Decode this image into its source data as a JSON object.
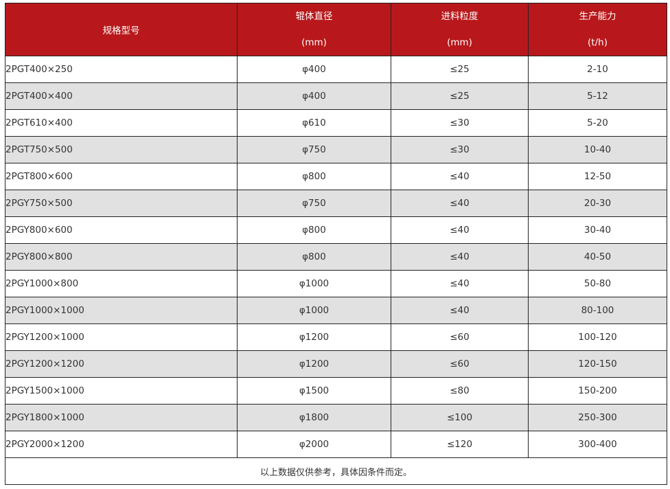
{
  "header_color": "#b8181b",
  "columns": [
    {
      "title": "规格型号",
      "unit": ""
    },
    {
      "title": "辊体直径",
      "unit": "(mm)"
    },
    {
      "title": "进料粒度",
      "unit": "(mm)"
    },
    {
      "title": "生产能力",
      "unit": "(t/h)"
    }
  ],
  "rows": [
    [
      "2PGT400×250",
      "φ400",
      "≤25",
      "2-10"
    ],
    [
      "2PGT400×400",
      "φ400",
      "≤25",
      "5-12"
    ],
    [
      "2PGT610×400",
      "φ610",
      "≤30",
      "5-20"
    ],
    [
      "2PGT750×500",
      "φ750",
      "≤30",
      "10-40"
    ],
    [
      "2PGT800×600",
      "φ800",
      "≤40",
      "12-50"
    ],
    [
      "2PGY750×500",
      "φ750",
      "≤40",
      "20-30"
    ],
    [
      "2PGY800×600",
      "φ800",
      "≤40",
      "30-40"
    ],
    [
      "2PGY800×800",
      "φ800",
      "≤40",
      "40-50"
    ],
    [
      "2PGY1000×800",
      "φ1000",
      "≤40",
      "50-80"
    ],
    [
      "2PGY1000×1000",
      "φ1000",
      "≤40",
      "80-100"
    ],
    [
      "2PGY1200×1000",
      "φ1200",
      "≤60",
      "100-120"
    ],
    [
      "2PGY1200×1200",
      "φ1200",
      "≤60",
      "120-150"
    ],
    [
      "2PGY1500×1000",
      "φ1500",
      "≤80",
      "150-200"
    ],
    [
      "2PGY1800×1000",
      "φ1800",
      "≤100",
      "250-300"
    ],
    [
      "2PGY2000×1200",
      "φ2000",
      "≤120",
      "300-400"
    ]
  ],
  "footnote": "以上数据仅供参考，具体因条件而定。"
}
